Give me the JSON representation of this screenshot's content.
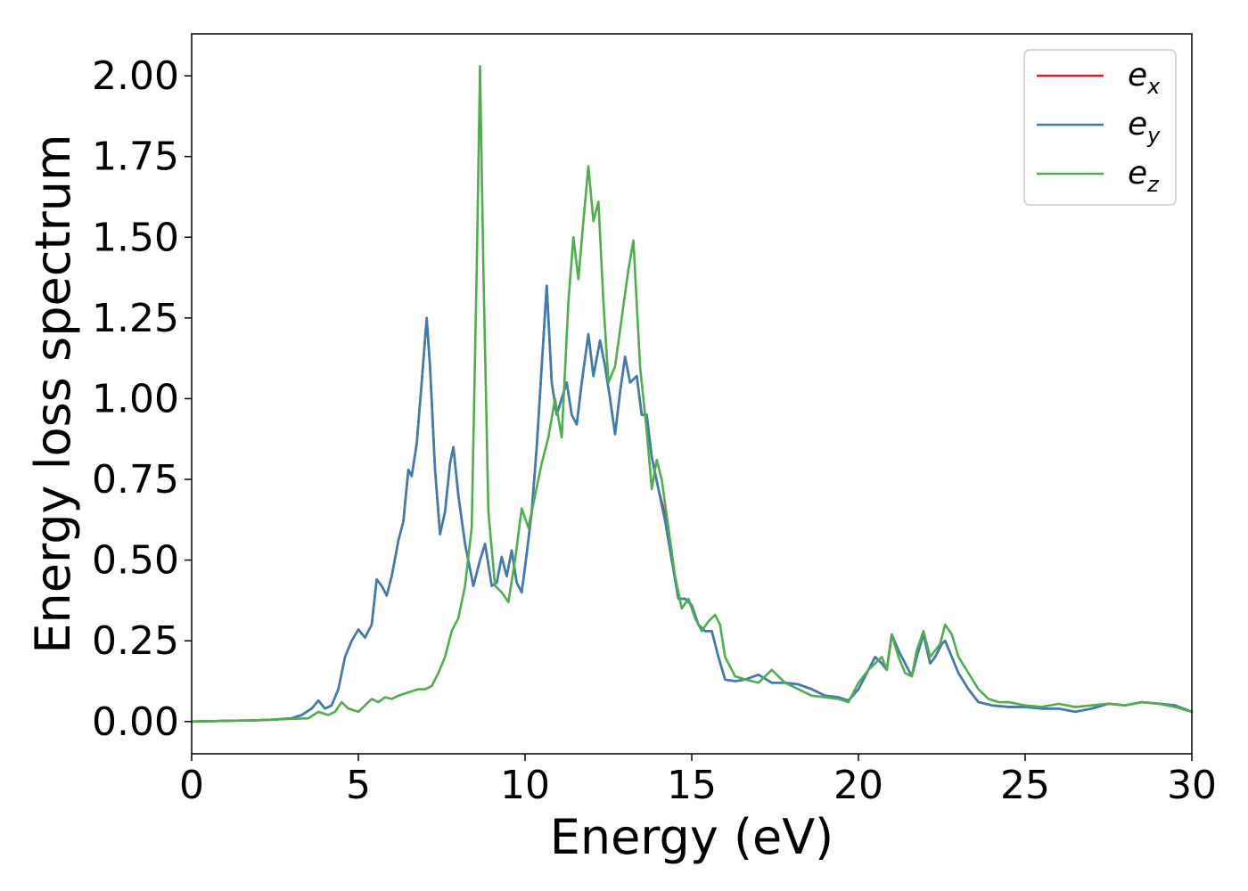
{
  "chart_data": {
    "type": "line",
    "title": "",
    "xlabel": "Energy (eV)",
    "ylabel": "Energy loss spectrum",
    "xlim": [
      0,
      30
    ],
    "ylim": [
      -0.1,
      2.13
    ],
    "xticks": [
      0,
      5,
      10,
      15,
      20,
      25,
      30
    ],
    "xtick_labels": [
      "0",
      "5",
      "10",
      "15",
      "20",
      "25",
      "30"
    ],
    "yticks": [
      0.0,
      0.25,
      0.5,
      0.75,
      1.0,
      1.25,
      1.5,
      1.75,
      2.0
    ],
    "ytick_labels": [
      "0.00",
      "0.25",
      "0.50",
      "0.75",
      "1.00",
      "1.25",
      "1.50",
      "1.75",
      "2.00"
    ],
    "grid": false,
    "legend_position": "top-right",
    "series": [
      {
        "name": "e",
        "name_sub": "x",
        "color": "#e41a1c",
        "x": [
          0,
          1,
          2,
          2.5,
          3,
          3.3,
          3.6,
          3.8,
          4,
          4.2,
          4.4,
          4.6,
          4.8,
          5,
          5.2,
          5.4,
          5.55,
          5.7,
          5.85,
          6,
          6.2,
          6.35,
          6.5,
          6.6,
          6.75,
          6.9,
          7.05,
          7.15,
          7.3,
          7.45,
          7.6,
          7.75,
          7.85,
          8,
          8.2,
          8.45,
          8.65,
          8.8,
          9,
          9.15,
          9.3,
          9.45,
          9.6,
          9.75,
          9.9,
          10.05,
          10.2,
          10.35,
          10.5,
          10.65,
          10.8,
          10.95,
          11.1,
          11.25,
          11.4,
          11.55,
          11.7,
          11.9,
          12.05,
          12.25,
          12.4,
          12.55,
          12.7,
          12.85,
          13,
          13.15,
          13.35,
          13.5,
          13.65,
          13.8,
          14,
          14.2,
          14.4,
          14.6,
          14.8,
          15,
          15.2,
          15.4,
          15.6,
          15.8,
          16,
          16.3,
          16.6,
          17,
          17.4,
          17.8,
          18.2,
          18.6,
          19,
          19.4,
          19.7,
          20,
          20.3,
          20.5,
          20.7,
          20.85,
          21,
          21.2,
          21.4,
          21.6,
          21.75,
          21.95,
          22.15,
          22.3,
          22.5,
          22.6,
          22.8,
          23,
          23.3,
          23.6,
          24,
          24.5,
          25,
          25.5,
          26,
          26.5,
          27,
          27.5,
          28,
          28.5,
          29,
          29.5,
          30
        ],
        "y": [
          0,
          0.002,
          0.004,
          0.006,
          0.01,
          0.02,
          0.04,
          0.065,
          0.04,
          0.05,
          0.1,
          0.2,
          0.25,
          0.285,
          0.26,
          0.3,
          0.44,
          0.42,
          0.39,
          0.45,
          0.56,
          0.62,
          0.78,
          0.76,
          0.86,
          1.05,
          1.25,
          1.1,
          0.78,
          0.58,
          0.65,
          0.8,
          0.85,
          0.7,
          0.55,
          0.42,
          0.5,
          0.55,
          0.42,
          0.43,
          0.51,
          0.45,
          0.53,
          0.43,
          0.4,
          0.52,
          0.65,
          0.85,
          1.1,
          1.35,
          1.05,
          0.95,
          1.0,
          1.05,
          0.95,
          0.92,
          1.05,
          1.2,
          1.07,
          1.18,
          1.1,
          1.0,
          0.89,
          1.02,
          1.13,
          1.05,
          1.07,
          0.95,
          0.95,
          0.82,
          0.72,
          0.64,
          0.5,
          0.38,
          0.38,
          0.36,
          0.3,
          0.28,
          0.28,
          0.2,
          0.13,
          0.125,
          0.13,
          0.145,
          0.12,
          0.12,
          0.115,
          0.1,
          0.08,
          0.075,
          0.065,
          0.1,
          0.16,
          0.2,
          0.18,
          0.16,
          0.27,
          0.22,
          0.18,
          0.14,
          0.2,
          0.27,
          0.18,
          0.2,
          0.24,
          0.25,
          0.2,
          0.15,
          0.1,
          0.06,
          0.05,
          0.045,
          0.045,
          0.04,
          0.04,
          0.03,
          0.04,
          0.055,
          0.05,
          0.06,
          0.055,
          0.05,
          0.03
        ]
      },
      {
        "name": "e",
        "name_sub": "y",
        "color": "#377eb8",
        "x": [
          0,
          1,
          2,
          2.5,
          3,
          3.3,
          3.6,
          3.8,
          4,
          4.2,
          4.4,
          4.6,
          4.8,
          5,
          5.2,
          5.4,
          5.55,
          5.7,
          5.85,
          6,
          6.2,
          6.35,
          6.5,
          6.6,
          6.75,
          6.9,
          7.05,
          7.15,
          7.3,
          7.45,
          7.6,
          7.75,
          7.85,
          8,
          8.2,
          8.45,
          8.65,
          8.8,
          9,
          9.15,
          9.3,
          9.45,
          9.6,
          9.75,
          9.9,
          10.05,
          10.2,
          10.35,
          10.5,
          10.65,
          10.8,
          10.95,
          11.1,
          11.25,
          11.4,
          11.55,
          11.7,
          11.9,
          12.05,
          12.25,
          12.4,
          12.55,
          12.7,
          12.85,
          13,
          13.15,
          13.35,
          13.5,
          13.65,
          13.8,
          14,
          14.2,
          14.4,
          14.6,
          14.8,
          15,
          15.2,
          15.4,
          15.6,
          15.8,
          16,
          16.3,
          16.6,
          17,
          17.4,
          17.8,
          18.2,
          18.6,
          19,
          19.4,
          19.7,
          20,
          20.3,
          20.5,
          20.7,
          20.85,
          21,
          21.2,
          21.4,
          21.6,
          21.75,
          21.95,
          22.15,
          22.3,
          22.5,
          22.6,
          22.8,
          23,
          23.3,
          23.6,
          24,
          24.5,
          25,
          25.5,
          26,
          26.5,
          27,
          27.5,
          28,
          28.5,
          29,
          29.5,
          30
        ],
        "y": [
          0,
          0.002,
          0.004,
          0.006,
          0.01,
          0.02,
          0.04,
          0.065,
          0.04,
          0.05,
          0.1,
          0.2,
          0.25,
          0.285,
          0.26,
          0.3,
          0.44,
          0.42,
          0.39,
          0.45,
          0.56,
          0.62,
          0.78,
          0.76,
          0.86,
          1.05,
          1.25,
          1.1,
          0.78,
          0.58,
          0.65,
          0.8,
          0.85,
          0.7,
          0.55,
          0.42,
          0.5,
          0.55,
          0.42,
          0.43,
          0.51,
          0.45,
          0.53,
          0.43,
          0.4,
          0.52,
          0.65,
          0.85,
          1.1,
          1.35,
          1.05,
          0.95,
          1.0,
          1.05,
          0.95,
          0.92,
          1.05,
          1.2,
          1.07,
          1.18,
          1.1,
          1.0,
          0.89,
          1.02,
          1.13,
          1.05,
          1.07,
          0.95,
          0.95,
          0.82,
          0.72,
          0.62,
          0.5,
          0.38,
          0.38,
          0.36,
          0.3,
          0.28,
          0.28,
          0.2,
          0.13,
          0.125,
          0.13,
          0.145,
          0.12,
          0.12,
          0.115,
          0.1,
          0.08,
          0.075,
          0.065,
          0.1,
          0.16,
          0.2,
          0.18,
          0.16,
          0.27,
          0.22,
          0.18,
          0.14,
          0.2,
          0.27,
          0.18,
          0.2,
          0.24,
          0.25,
          0.2,
          0.15,
          0.1,
          0.06,
          0.05,
          0.045,
          0.045,
          0.04,
          0.04,
          0.03,
          0.04,
          0.055,
          0.05,
          0.06,
          0.055,
          0.05,
          0.03
        ]
      },
      {
        "name": "e",
        "name_sub": "z",
        "color": "#4daf4a",
        "x": [
          0,
          1,
          2,
          3,
          3.5,
          3.8,
          4.1,
          4.3,
          4.5,
          4.7,
          5,
          5.2,
          5.4,
          5.6,
          5.8,
          6,
          6.2,
          6.5,
          6.8,
          7,
          7.2,
          7.4,
          7.6,
          7.8,
          8,
          8.2,
          8.4,
          8.55,
          8.65,
          8.75,
          8.9,
          9.1,
          9.3,
          9.5,
          9.7,
          9.9,
          10.1,
          10.3,
          10.5,
          10.7,
          10.9,
          11.1,
          11.3,
          11.45,
          11.6,
          11.75,
          11.9,
          12.05,
          12.2,
          12.35,
          12.5,
          12.7,
          12.9,
          13.1,
          13.25,
          13.45,
          13.65,
          13.8,
          13.95,
          14.1,
          14.3,
          14.5,
          14.7,
          14.9,
          15.1,
          15.3,
          15.5,
          15.7,
          15.85,
          16,
          16.3,
          16.6,
          17,
          17.4,
          17.8,
          18.2,
          18.6,
          19,
          19.4,
          19.7,
          20,
          20.3,
          20.5,
          20.7,
          20.85,
          21,
          21.2,
          21.4,
          21.6,
          21.75,
          21.95,
          22.15,
          22.3,
          22.45,
          22.6,
          22.8,
          23,
          23.3,
          23.6,
          23.9,
          24.2,
          24.5,
          25,
          25.5,
          26,
          26.5,
          27,
          27.5,
          28,
          28.5,
          29,
          29.5,
          30
        ],
        "y": [
          0,
          0.002,
          0.004,
          0.008,
          0.01,
          0.03,
          0.02,
          0.03,
          0.06,
          0.04,
          0.03,
          0.05,
          0.07,
          0.06,
          0.075,
          0.07,
          0.08,
          0.09,
          0.1,
          0.1,
          0.11,
          0.15,
          0.2,
          0.28,
          0.32,
          0.42,
          0.6,
          1.4,
          2.03,
          1.4,
          0.65,
          0.42,
          0.4,
          0.37,
          0.5,
          0.66,
          0.6,
          0.7,
          0.8,
          0.88,
          1.0,
          0.88,
          1.3,
          1.5,
          1.37,
          1.55,
          1.72,
          1.55,
          1.61,
          1.3,
          1.05,
          1.1,
          1.25,
          1.4,
          1.49,
          1.1,
          0.9,
          0.72,
          0.81,
          0.75,
          0.6,
          0.45,
          0.35,
          0.38,
          0.32,
          0.28,
          0.31,
          0.33,
          0.3,
          0.2,
          0.14,
          0.13,
          0.12,
          0.16,
          0.12,
          0.1,
          0.08,
          0.075,
          0.07,
          0.06,
          0.12,
          0.16,
          0.18,
          0.2,
          0.16,
          0.27,
          0.2,
          0.15,
          0.14,
          0.22,
          0.28,
          0.2,
          0.22,
          0.24,
          0.3,
          0.27,
          0.2,
          0.15,
          0.1,
          0.07,
          0.06,
          0.06,
          0.05,
          0.045,
          0.055,
          0.045,
          0.05,
          0.055,
          0.05,
          0.06,
          0.055,
          0.045,
          0.03
        ]
      }
    ]
  }
}
